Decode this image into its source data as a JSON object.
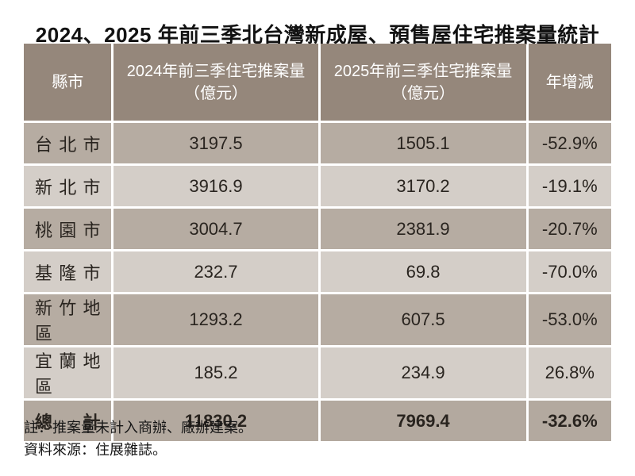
{
  "title": "2024、2025 年前三季北台灣新成屋、預售屋住宅推案量統計",
  "table": {
    "columns": [
      {
        "label": "縣市",
        "sublabel": ""
      },
      {
        "label": "2024年前三季住宅推案量",
        "sublabel": "（億元）"
      },
      {
        "label": "2025年前三季住宅推案量",
        "sublabel": "（億元）"
      },
      {
        "label": "年增減",
        "sublabel": ""
      }
    ],
    "rows": [
      {
        "region": "台 北 市",
        "y2024": "3197.5",
        "y2025": "1505.1",
        "yoy": "-52.9%"
      },
      {
        "region": "新 北 市",
        "y2024": "3916.9",
        "y2025": "3170.2",
        "yoy": "-19.1%"
      },
      {
        "region": "桃 園 市",
        "y2024": "3004.7",
        "y2025": "2381.9",
        "yoy": "-20.7%"
      },
      {
        "region": "基 隆 市",
        "y2024": "232.7",
        "y2025": "69.8",
        "yoy": "-70.0%"
      },
      {
        "region": "新竹地區",
        "y2024": "1293.2",
        "y2025": "607.5",
        "yoy": "-53.0%"
      },
      {
        "region": "宜蘭地區",
        "y2024": "185.2",
        "y2025": "234.9",
        "yoy": "26.8%"
      }
    ],
    "total": {
      "region": "總　計",
      "y2024": "11830.2",
      "y2025": "7969.4",
      "yoy": "-32.6%"
    }
  },
  "notes": {
    "line1": "註：推案量未計入商辦、廠辦建案。",
    "line2": "資料來源：住展雜誌。"
  },
  "colors": {
    "header_bg": "#95877b",
    "row_odd_bg": "#b6aca2",
    "row_even_bg": "#d4cec8",
    "total_row_bg": "#b3a99f",
    "header_text": "#ffffff",
    "body_text": "#29241f",
    "page_bg": "#ffffff"
  },
  "chart_data": {
    "type": "table",
    "title": "2024、2025 年前三季北台灣新成屋、預售屋住宅推案量統計",
    "columns": [
      "縣市",
      "2024年前三季住宅推案量（億元）",
      "2025年前三季住宅推案量（億元）",
      "年增減"
    ],
    "rows": [
      [
        "台北市",
        3197.5,
        1505.1,
        "-52.9%"
      ],
      [
        "新北市",
        3916.9,
        3170.2,
        "-19.1%"
      ],
      [
        "桃園市",
        3004.7,
        2381.9,
        "-20.7%"
      ],
      [
        "基隆市",
        232.7,
        69.8,
        "-70.0%"
      ],
      [
        "新竹地區",
        1293.2,
        607.5,
        "-53.0%"
      ],
      [
        "宜蘭地區",
        185.2,
        234.9,
        "26.8%"
      ],
      [
        "總計",
        11830.2,
        7969.4,
        "-32.6%"
      ]
    ],
    "notes": [
      "註：推案量未計入商辦、廠辦建案。",
      "資料來源：住展雜誌。"
    ]
  }
}
